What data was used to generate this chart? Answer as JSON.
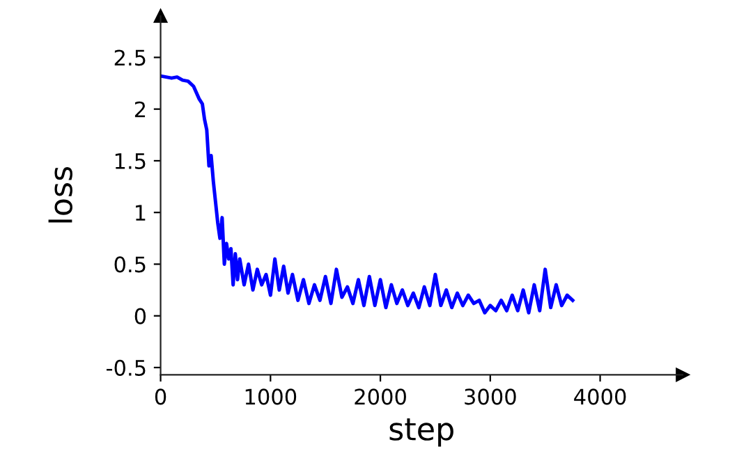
{
  "chart_data": {
    "type": "line",
    "xlabel": "step",
    "ylabel": "loss",
    "xlim": [
      0,
      4750
    ],
    "ylim": [
      -0.57,
      2.9
    ],
    "xticks": [
      0,
      1000,
      2000,
      3000,
      4000
    ],
    "yticks": [
      -0.5,
      0,
      0.5,
      1,
      1.5,
      2,
      2.5
    ],
    "grid": false,
    "legend": false,
    "marker": "none",
    "line_style": "solid",
    "series": [
      {
        "color": "#0000ff",
        "x": [
          0,
          50,
          100,
          150,
          200,
          250,
          300,
          350,
          380,
          400,
          420,
          440,
          460,
          480,
          500,
          520,
          540,
          560,
          580,
          600,
          620,
          640,
          660,
          680,
          700,
          720,
          760,
          800,
          840,
          880,
          920,
          960,
          1000,
          1040,
          1080,
          1120,
          1160,
          1200,
          1250,
          1300,
          1350,
          1400,
          1450,
          1500,
          1550,
          1600,
          1650,
          1700,
          1750,
          1800,
          1850,
          1900,
          1950,
          2000,
          2050,
          2100,
          2150,
          2200,
          2250,
          2300,
          2350,
          2400,
          2450,
          2500,
          2550,
          2600,
          2650,
          2700,
          2750,
          2800,
          2850,
          2900,
          2950,
          3000,
          3050,
          3100,
          3150,
          3200,
          3250,
          3300,
          3350,
          3400,
          3450,
          3500,
          3550,
          3600,
          3650,
          3700,
          3750
        ],
        "values": [
          2.32,
          2.31,
          2.3,
          2.31,
          2.28,
          2.27,
          2.22,
          2.1,
          2.05,
          1.9,
          1.8,
          1.45,
          1.55,
          1.3,
          1.1,
          0.9,
          0.75,
          0.95,
          0.5,
          0.7,
          0.55,
          0.65,
          0.3,
          0.6,
          0.35,
          0.55,
          0.3,
          0.5,
          0.25,
          0.45,
          0.3,
          0.4,
          0.2,
          0.55,
          0.25,
          0.48,
          0.22,
          0.4,
          0.15,
          0.35,
          0.12,
          0.3,
          0.15,
          0.38,
          0.12,
          0.45,
          0.18,
          0.28,
          0.12,
          0.35,
          0.1,
          0.38,
          0.1,
          0.35,
          0.08,
          0.3,
          0.12,
          0.25,
          0.1,
          0.22,
          0.08,
          0.28,
          0.1,
          0.4,
          0.1,
          0.25,
          0.08,
          0.22,
          0.1,
          0.2,
          0.12,
          0.15,
          0.03,
          0.1,
          0.05,
          0.15,
          0.05,
          0.2,
          0.05,
          0.25,
          0.03,
          0.3,
          0.05,
          0.45,
          0.08,
          0.3,
          0.1,
          0.2,
          0.15
        ]
      }
    ]
  }
}
